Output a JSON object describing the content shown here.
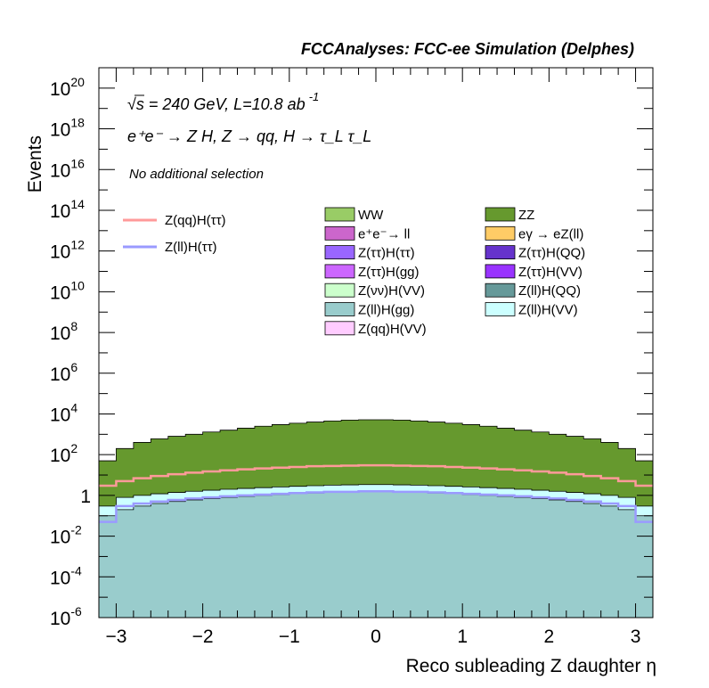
{
  "header": {
    "title": "FCCAnalyses: FCC-ee Simulation (Delphes)",
    "energy_line": "√s = 240 GeV, L=10.8 ab",
    "lumi_exponent": "-1",
    "process_line": "e⁺e⁻ → Z H, Z → qq, H → τ_L τ_L",
    "selection_line": "No additional selection"
  },
  "axes": {
    "xlabel": "Reco subleading Z daughter η",
    "ylabel": "Events",
    "x_tick_labels": [
      "−3",
      "−2",
      "−1",
      "0",
      "1",
      "2",
      "3"
    ],
    "y_tick_exponents": [
      "20",
      "18",
      "16",
      "14",
      "12",
      "10",
      "8",
      "6",
      "4",
      "2",
      "",
      "-2",
      "-4",
      "-6"
    ]
  },
  "legend": {
    "signals": [
      {
        "label": "Z(qq)H(ττ)",
        "color": "#ff9a9a"
      },
      {
        "label": "Z(ll)H(ττ)",
        "color": "#9a9aff"
      }
    ],
    "backgrounds": [
      {
        "label": "WW",
        "color": "#99cc66"
      },
      {
        "label": "ZZ",
        "color": "#66992e"
      },
      {
        "label": "e⁺e⁻→ ll",
        "color": "#cc66cc"
      },
      {
        "label": "eγ → eZ(ll)",
        "color": "#ffcc66"
      },
      {
        "label": "Z(ττ)H(ττ)",
        "color": "#9966ff"
      },
      {
        "label": "Z(ττ)H(QQ)",
        "color": "#6633cc"
      },
      {
        "label": "Z(ττ)H(gg)",
        "color": "#cc66ff"
      },
      {
        "label": "Z(ττ)H(VV)",
        "color": "#9933ff"
      },
      {
        "label": "Z(νν)H(VV)",
        "color": "#ccffcc"
      },
      {
        "label": "Z(ll)H(QQ)",
        "color": "#669999"
      },
      {
        "label": "Z(ll)H(gg)",
        "color": "#99cccc"
      },
      {
        "label": "Z(ll)H(VV)",
        "color": "#ccffff"
      },
      {
        "label": "Z(qq)H(VV)",
        "color": "#ffccff"
      }
    ]
  },
  "chart_data": {
    "type": "area",
    "stacked": true,
    "ylog": true,
    "xlim": [
      -3.2,
      3.2
    ],
    "ylim": [
      1e-06,
      1e+21
    ],
    "bin_edges": [
      -3.2,
      -3.0,
      -2.8,
      -2.6,
      -2.4,
      -2.2,
      -2.0,
      -1.8,
      -1.6,
      -1.4,
      -1.2,
      -1.0,
      -0.8,
      -0.6,
      -0.4,
      -0.2,
      0.0,
      0.2,
      0.4,
      0.6,
      0.8,
      1.0,
      1.2,
      1.4,
      1.6,
      1.8,
      2.0,
      2.2,
      2.4,
      2.6,
      2.8,
      3.0,
      3.2
    ],
    "stack_totals": {
      "Z(ll)H(VV)": [
        0.3,
        0.8,
        1,
        1.2,
        1.4,
        1.6,
        1.8,
        2.0,
        2.2,
        2.4,
        2.6,
        2.8,
        3.0,
        3.2,
        3.3,
        3.4,
        3.4,
        3.3,
        3.2,
        3.0,
        2.8,
        2.6,
        2.4,
        2.2,
        2.0,
        1.8,
        1.6,
        1.4,
        1.2,
        1.0,
        0.8,
        0.3
      ],
      "Z(ll)H(gg)": [
        0.1,
        0.2,
        0.3,
        0.4,
        0.5,
        0.6,
        0.7,
        0.8,
        0.9,
        1.0,
        1.1,
        1.2,
        1.3,
        1.4,
        1.5,
        1.5,
        1.5,
        1.5,
        1.4,
        1.3,
        1.2,
        1.1,
        1.0,
        0.9,
        0.8,
        0.7,
        0.6,
        0.5,
        0.4,
        0.3,
        0.2,
        0.1
      ],
      "ZZ": [
        50,
        200,
        400,
        600,
        800,
        1000,
        1300,
        1600,
        2000,
        2500,
        3000,
        3500,
        4000,
        4500,
        5000,
        5200,
        5200,
        5000,
        4500,
        4000,
        3500,
        3000,
        2500,
        2000,
        1600,
        1300,
        1000,
        800,
        600,
        400,
        200,
        50
      ]
    },
    "signals": [
      {
        "name": "Z(qq)H(ττ)",
        "values": [
          3,
          5,
          7,
          9,
          11,
          13,
          15,
          17,
          19,
          21,
          23,
          25,
          27,
          28,
          29,
          30,
          30,
          29,
          28,
          27,
          25,
          23,
          21,
          19,
          17,
          15,
          13,
          11,
          9,
          7,
          5,
          3
        ]
      },
      {
        "name": "Z(ll)H(ττ)",
        "values": [
          0.05,
          0.3,
          0.4,
          0.5,
          0.6,
          0.7,
          0.8,
          0.9,
          1.0,
          1.1,
          1.2,
          1.3,
          1.4,
          1.5,
          1.5,
          1.6,
          1.6,
          1.5,
          1.5,
          1.4,
          1.3,
          1.2,
          1.1,
          1.0,
          0.9,
          0.8,
          0.7,
          0.6,
          0.5,
          0.4,
          0.3,
          0.05
        ]
      }
    ]
  }
}
